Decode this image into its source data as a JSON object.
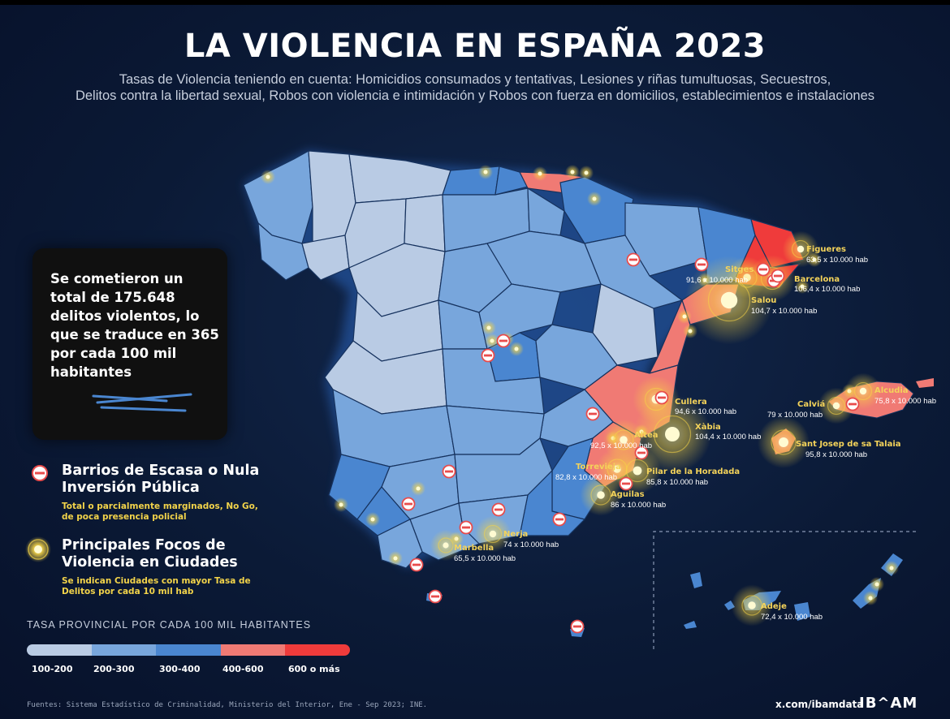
{
  "title": "LA VIOLENCIA EN ESPAÑA 2023",
  "subtitle_line1": "Tasas de Violencia teniendo en cuenta: Homicidios consumados y tentativas, Lesiones y riñas tumultuosas, Secuestros,",
  "subtitle_line2": "Delitos contra la libertad sexual, Robos con violencia e intimidación y Robos con fuerza en domicilios, establecimientos e instalaciones",
  "stat_box": {
    "text": "Se cometieron un total de 175.648 delitos violentos, lo que se traduce en 365 por cada 100 mil habitantes"
  },
  "legend": {
    "nogo_title": "Barrios de Escasa o Nula Inversión Pública",
    "nogo_note": "Total o parcialmente marginados, No Go, de poca presencia policial",
    "focus_title": "Principales Focos de Violencia en Ciudades",
    "focus_note": "Se indican Ciudades con mayor Tasa de Delitos por cada 10 mil hab"
  },
  "scale": {
    "title": "TASA PROVINCIAL POR CADA 100 MIL HABITANTES",
    "classes": [
      {
        "label": "100-200",
        "color": "#b9cbe4"
      },
      {
        "label": "200-300",
        "color": "#78a6dc"
      },
      {
        "label": "300-400",
        "color": "#4a86d0"
      },
      {
        "label": "400-600",
        "color": "#f07a74"
      },
      {
        "label": "600 o más",
        "color": "#ef3b3b"
      }
    ]
  },
  "cities": [
    {
      "name": "Figueres",
      "rate": "63,5 x 10.000 hab"
    },
    {
      "name": "Sitges",
      "rate": "91,6 x 10.000 hab"
    },
    {
      "name": "Barcelona",
      "rate": "106,4 x 10.000 hab"
    },
    {
      "name": "Salou",
      "rate": "104,7 x 10.000 hab"
    },
    {
      "name": "Alcudia",
      "rate": "75,8 x 10.000 hab"
    },
    {
      "name": "Calviá",
      "rate": "79 x 10.000 hab"
    },
    {
      "name": "Cullera",
      "rate": "94,6 x 10.000 hab"
    },
    {
      "name": "Xàbia",
      "rate": "104,4 x 10.000 hab"
    },
    {
      "name": "Altea",
      "rate": "92,5 x 10.000 hab"
    },
    {
      "name": "Sant Josep de sa Talaia",
      "rate": "95,8 x 10.000 hab"
    },
    {
      "name": "Torrevieja",
      "rate": "82,8 x 10.000 hab"
    },
    {
      "name": "Pilar de la Horadada",
      "rate": "85,8 x 10.000 hab"
    },
    {
      "name": "Aguilas",
      "rate": "86 x 10.000 hab"
    },
    {
      "name": "Nerja",
      "rate": "74 x 10.000 hab"
    },
    {
      "name": "Marbella",
      "rate": "65,5 x 10.000 hab"
    },
    {
      "name": "Adeje",
      "rate": "72,4 x 10.000 hab"
    }
  ],
  "source": "Fuentes: Sistema Estadístico de Criminalidad, Ministerio del Interior, Ene - Sep 2023; INE.",
  "handle": "x.com/ibamdata",
  "brand": "IB^AM"
}
